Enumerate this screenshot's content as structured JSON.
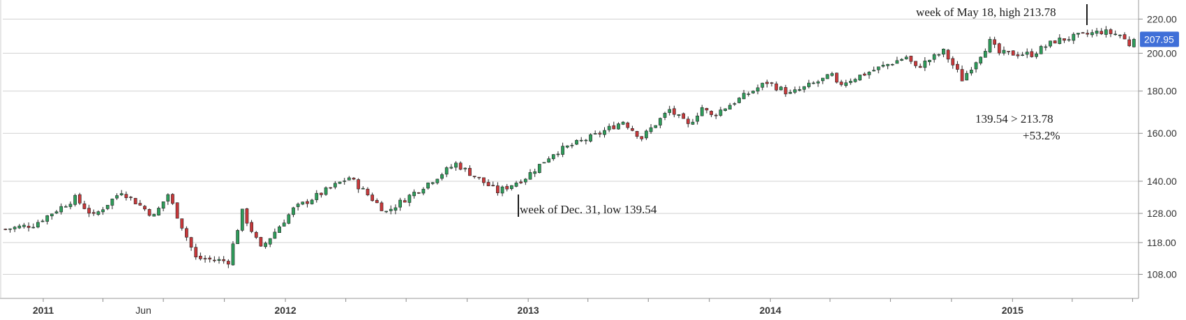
{
  "chart_data": {
    "type": "candlestick",
    "title": "",
    "xlabel": "",
    "ylabel": "",
    "yscale": "log",
    "ylim": [
      101,
      232
    ],
    "y_ticks": [
      "108.00",
      "118.00",
      "128.00",
      "140.00",
      "160.00",
      "180.00",
      "200.00",
      "220.00"
    ],
    "y_tick_values": [
      108,
      118,
      128,
      140,
      160,
      180,
      200,
      220
    ],
    "x_ticks": [
      {
        "label": "2011",
        "date": "2011-01-01",
        "bold": true
      },
      {
        "label": "Jun",
        "date": "2011-06-01",
        "bold": false
      },
      {
        "label": "2012",
        "date": "2012-01-01",
        "bold": true
      },
      {
        "label": "2013",
        "date": "2013-01-01",
        "bold": true
      },
      {
        "label": "2014",
        "date": "2014-01-01",
        "bold": true
      },
      {
        "label": "2015",
        "date": "2015-01-01",
        "bold": true
      }
    ],
    "x_start": "2010-11-01",
    "x_end": "2015-07-10",
    "last_price": "207.95",
    "colors": {
      "up": "#2e9e5b",
      "down": "#c9383a",
      "wick": "#222222",
      "price_tag": "#3f6fd8",
      "grid": "#d0d0d0"
    },
    "close_anchors": [
      [
        "2010-11-05",
        122.5
      ],
      [
        "2010-12-17",
        124
      ],
      [
        "2011-02-18",
        133.5
      ],
      [
        "2011-03-18",
        127
      ],
      [
        "2011-04-29",
        136.2
      ],
      [
        "2011-06-17",
        127
      ],
      [
        "2011-07-08",
        135
      ],
      [
        "2011-08-19",
        113
      ],
      [
        "2011-10-07",
        112
      ],
      [
        "2011-10-28",
        128.5
      ],
      [
        "2011-11-25",
        116
      ],
      [
        "2012-01-13",
        129.5
      ],
      [
        "2012-04-06",
        141.5
      ],
      [
        "2012-06-01",
        128.5
      ],
      [
        "2012-09-14",
        147
      ],
      [
        "2012-11-16",
        136
      ],
      [
        "2012-12-28",
        141.5
      ],
      [
        "2013-02-08",
        151.5
      ],
      [
        "2013-04-12",
        159
      ],
      [
        "2013-05-24",
        165.5
      ],
      [
        "2013-06-21",
        158
      ],
      [
        "2013-08-02",
        170.8
      ],
      [
        "2013-08-30",
        163.5
      ],
      [
        "2013-09-20",
        172
      ],
      [
        "2013-10-04",
        168
      ],
      [
        "2013-12-27",
        184.5
      ],
      [
        "2014-01-31",
        178.5
      ],
      [
        "2014-04-04",
        188
      ],
      [
        "2014-04-11",
        183
      ],
      [
        "2014-07-25",
        198
      ],
      [
        "2014-08-08",
        192
      ],
      [
        "2014-09-19",
        201
      ],
      [
        "2014-10-10",
        190
      ],
      [
        "2014-10-17",
        186
      ],
      [
        "2014-11-28",
        206.5
      ],
      [
        "2014-12-12",
        200
      ],
      [
        "2015-01-30",
        199.5
      ],
      [
        "2015-03-06",
        207
      ],
      [
        "2015-05-15",
        212.5
      ],
      [
        "2015-06-12",
        210.5
      ],
      [
        "2015-06-26",
        205
      ],
      [
        "2015-07-03",
        207.95
      ]
    ]
  },
  "annotations": {
    "high": "week of May 18, high 213.78",
    "low": "week of Dec. 31, low 139.54",
    "range": "139.54 > 213.78",
    "change": "+53.2%"
  }
}
